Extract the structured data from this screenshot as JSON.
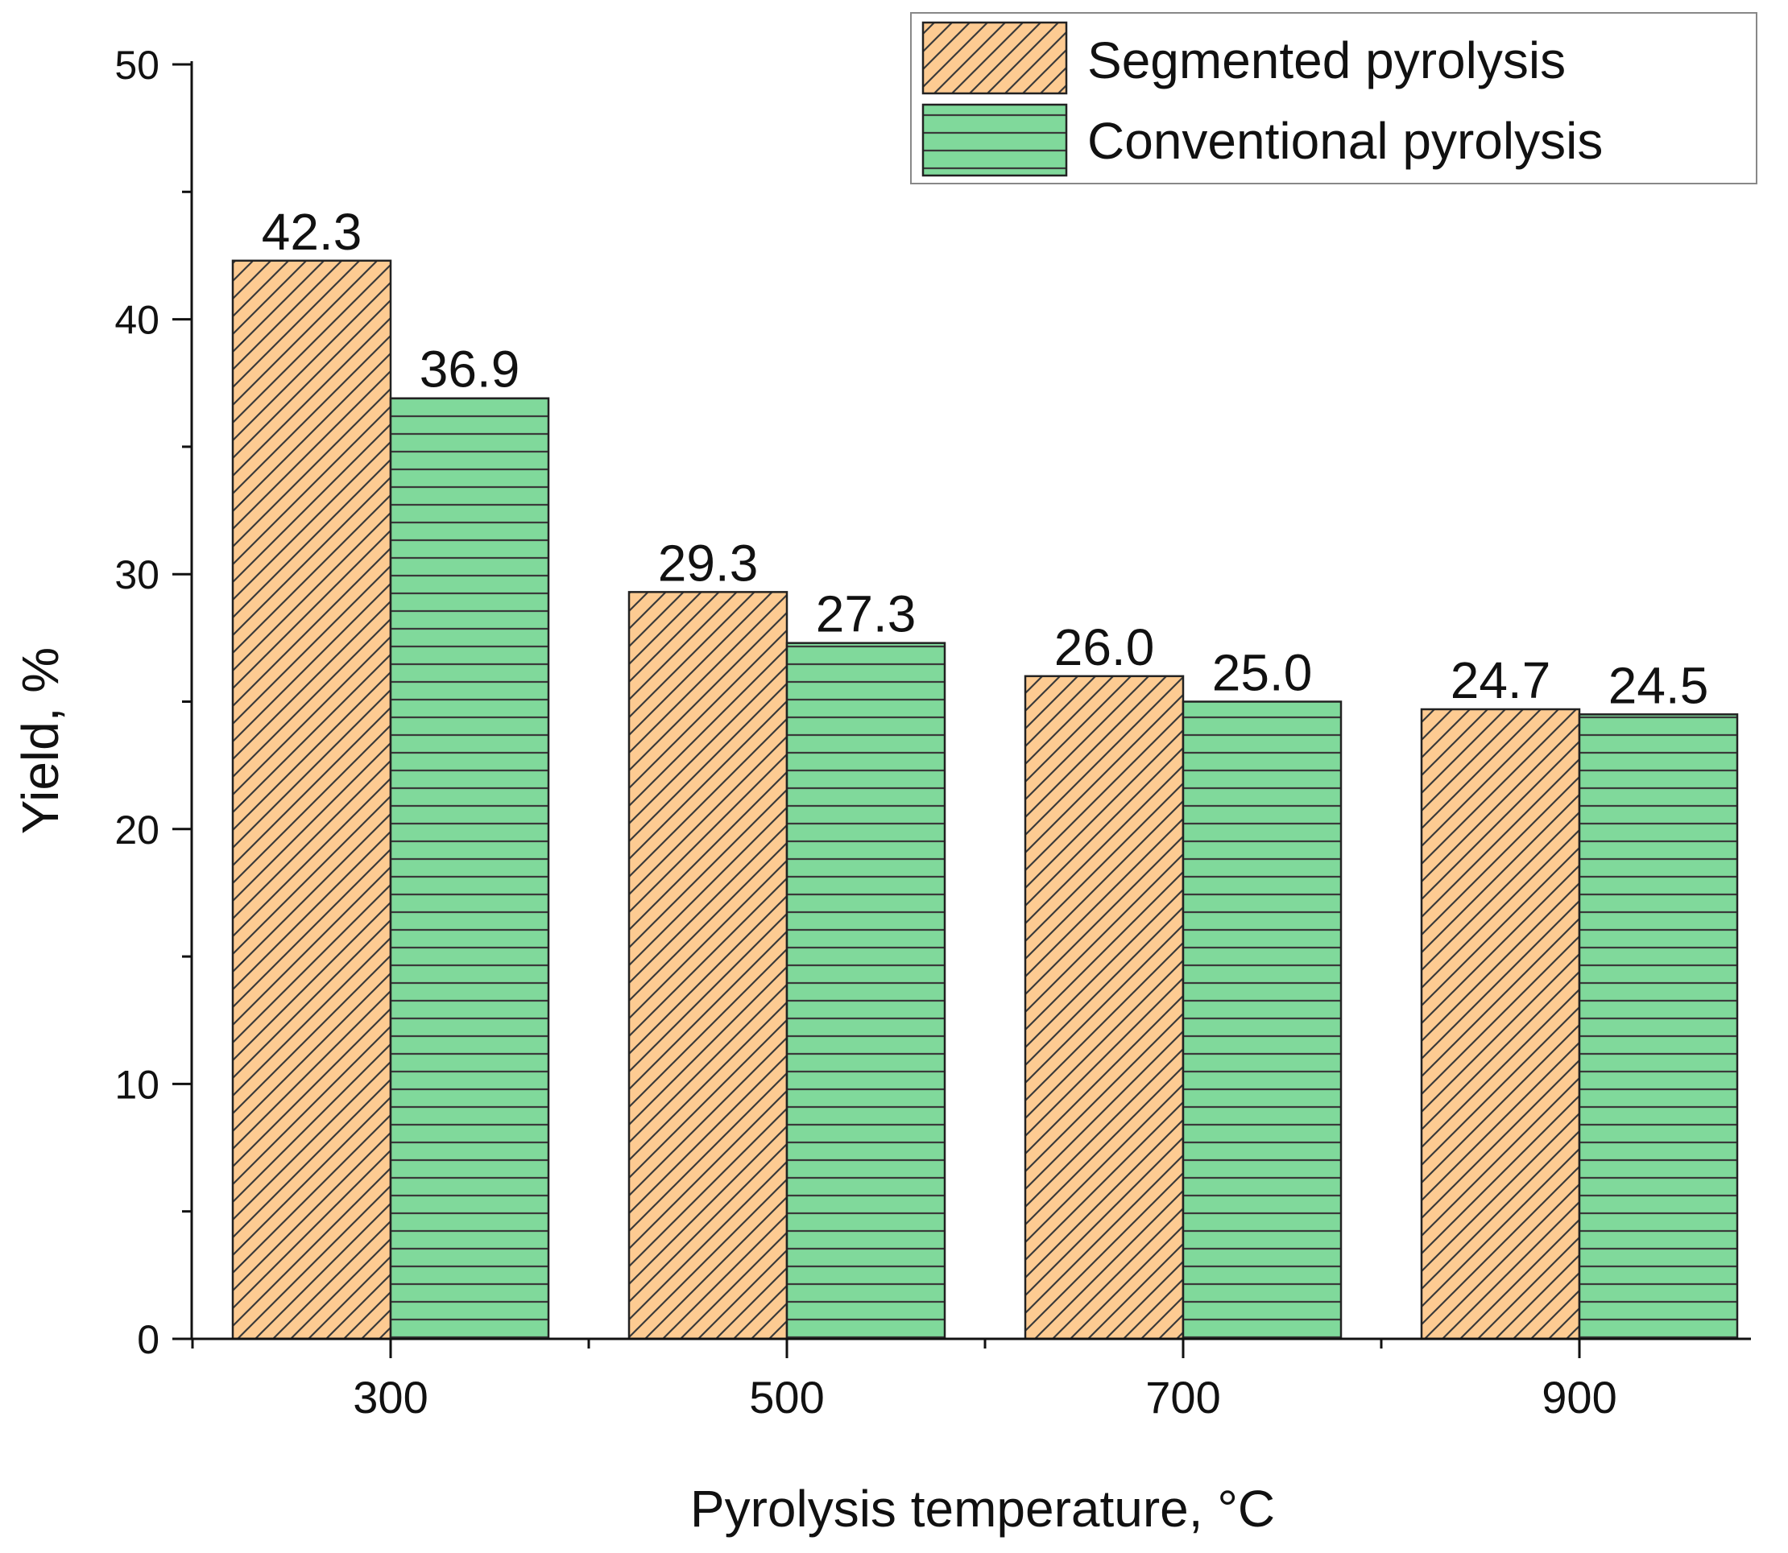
{
  "chart_data": {
    "type": "bar",
    "title": "",
    "xlabel": "Pyrolysis temperature, °C",
    "ylabel": "Yield, %",
    "categories": [
      "300",
      "500",
      "700",
      "900"
    ],
    "series": [
      {
        "name": "Segmented pyrolysis",
        "values": [
          42.3,
          29.3,
          26.0,
          24.7
        ],
        "labels": [
          "42.3",
          "29.3",
          "26.0",
          "24.7"
        ],
        "color": "#fdcb92",
        "pattern": "diagonal-hatch"
      },
      {
        "name": "Conventional pyrolysis",
        "values": [
          36.9,
          27.3,
          25.0,
          24.5
        ],
        "labels": [
          "36.9",
          "27.3",
          "25.0",
          "24.5"
        ],
        "color": "#80d99b",
        "pattern": "horizontal-lines"
      }
    ],
    "ylim": [
      0,
      50
    ],
    "yticks": [
      "0",
      "10",
      "20",
      "30",
      "40",
      "50"
    ],
    "grid": false,
    "legend_position": "top-right"
  }
}
